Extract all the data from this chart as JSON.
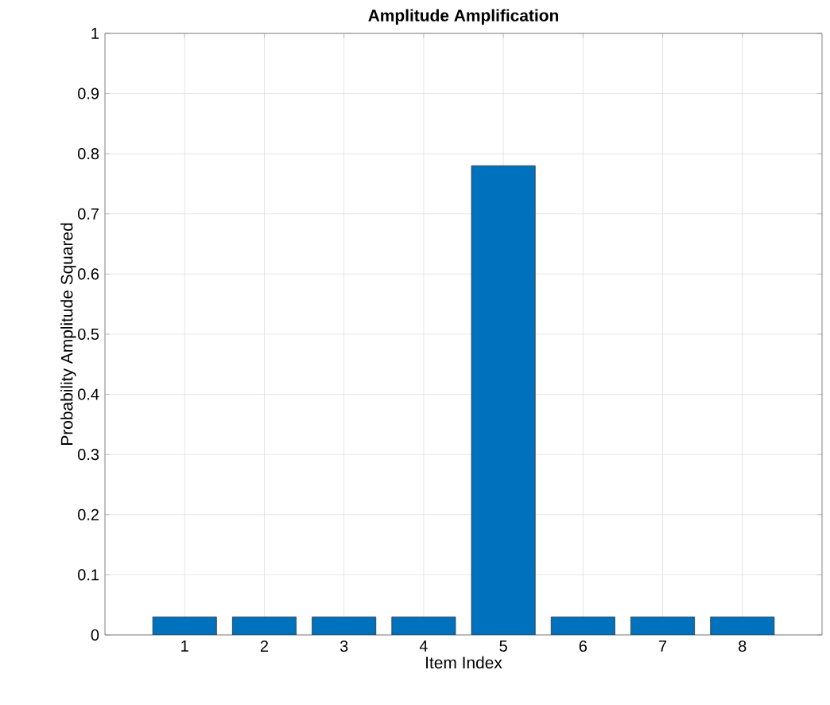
{
  "chart_data": {
    "type": "bar",
    "title": "Amplitude Amplification",
    "xlabel": "Item Index",
    "ylabel": "Probability Amplitude Squared",
    "x": [
      1,
      2,
      3,
      4,
      5,
      6,
      7,
      8
    ],
    "values": [
      0.03,
      0.03,
      0.03,
      0.03,
      0.78,
      0.03,
      0.03,
      0.03
    ],
    "color": "#0072bd",
    "xlim": [
      0,
      9
    ],
    "xticks": [
      1,
      2,
      3,
      4,
      5,
      6,
      7,
      8
    ],
    "ylim": [
      0,
      1
    ],
    "yticks": [
      0,
      0.1,
      0.2,
      0.3,
      0.4,
      0.5,
      0.6,
      0.7,
      0.8,
      0.9,
      1
    ],
    "grid": true
  }
}
